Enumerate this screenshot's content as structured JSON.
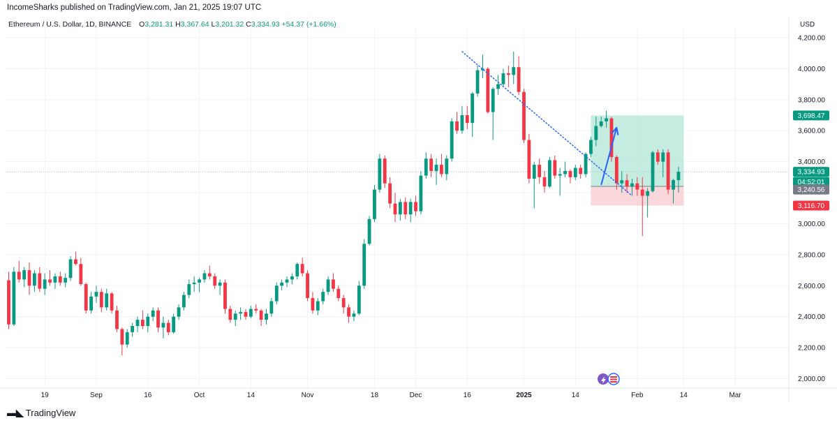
{
  "header": {
    "published": "IncomeSharks published on TradingView.com, Jan 21, 2025 19:07 UTC",
    "symbol": "Ethereum / U.S. Dollar, 1D, BINANCE",
    "ohlc": {
      "o_label": "O",
      "o": "3,281.31",
      "h_label": "H",
      "h": "3,367.64",
      "l_label": "L",
      "l": "3,201.32",
      "c_label": "C",
      "c": "3,334.93",
      "change": "+54.37 (+1.66%)"
    },
    "currency": "USD"
  },
  "footer": {
    "brand": "TradingView"
  },
  "colors": {
    "up": "#089981",
    "down": "#f23645",
    "trend": "#2962ff",
    "target_zone": "#b2e6d6",
    "stop_zone": "#f9d0d4"
  },
  "chart_data": {
    "type": "candlestick",
    "symbol": "ETHUSD",
    "timeframe": "1D",
    "ylim": [
      1950,
      4300
    ],
    "y_ticks": [
      2000,
      2200,
      2400,
      2600,
      2800,
      3000,
      3200,
      3400,
      3600,
      3800,
      4000,
      4200
    ],
    "y_tick_labels": [
      "2,000.00",
      "2,200.00",
      "2,400.00",
      "2,600.00",
      "2,800.00",
      "3,000.00",
      "",
      "3,400.00",
      "3,600.00",
      "3,800.00",
      "4,000.00",
      "4,200.00"
    ],
    "x_ticks": [
      {
        "label": "19",
        "index": 7,
        "bold": false
      },
      {
        "label": "Sep",
        "index": 17,
        "bold": false
      },
      {
        "label": "16",
        "index": 27,
        "bold": false
      },
      {
        "label": "Oct",
        "index": 37,
        "bold": false
      },
      {
        "label": "14",
        "index": 47,
        "bold": false
      },
      {
        "label": "Nov",
        "index": 58,
        "bold": false
      },
      {
        "label": "18",
        "index": 71,
        "bold": false
      },
      {
        "label": "Dec",
        "index": 79,
        "bold": false
      },
      {
        "label": "16",
        "index": 89,
        "bold": false
      },
      {
        "label": "2025",
        "index": 100,
        "bold": true
      },
      {
        "label": "14",
        "index": 110,
        "bold": false
      },
      {
        "label": "Feb",
        "index": 122,
        "bold": false
      },
      {
        "label": "14",
        "index": 131,
        "bold": false
      },
      {
        "label": "Mar",
        "index": 141,
        "bold": false
      }
    ],
    "candles": [
      [
        2635,
        2690,
        2320,
        2350
      ],
      [
        2350,
        2720,
        2340,
        2690
      ],
      [
        2690,
        2760,
        2620,
        2640
      ],
      [
        2640,
        2720,
        2590,
        2700
      ],
      [
        2700,
        2750,
        2540,
        2600
      ],
      [
        2600,
        2700,
        2560,
        2680
      ],
      [
        2680,
        2720,
        2560,
        2580
      ],
      [
        2580,
        2680,
        2540,
        2640
      ],
      [
        2640,
        2700,
        2600,
        2620
      ],
      [
        2620,
        2680,
        2580,
        2660
      ],
      [
        2660,
        2690,
        2600,
        2620
      ],
      [
        2620,
        2680,
        2590,
        2650
      ],
      [
        2650,
        2790,
        2630,
        2770
      ],
      [
        2770,
        2820,
        2730,
        2740
      ],
      [
        2740,
        2780,
        2600,
        2610
      ],
      [
        2610,
        2620,
        2420,
        2440
      ],
      [
        2440,
        2560,
        2420,
        2530
      ],
      [
        2530,
        2600,
        2490,
        2560
      ],
      [
        2560,
        2580,
        2430,
        2460
      ],
      [
        2460,
        2580,
        2440,
        2550
      ],
      [
        2550,
        2560,
        2420,
        2440
      ],
      [
        2440,
        2470,
        2300,
        2320
      ],
      [
        2320,
        2330,
        2150,
        2220
      ],
      [
        2220,
        2320,
        2200,
        2300
      ],
      [
        2300,
        2360,
        2270,
        2340
      ],
      [
        2340,
        2400,
        2300,
        2380
      ],
      [
        2380,
        2440,
        2320,
        2340
      ],
      [
        2340,
        2420,
        2300,
        2400
      ],
      [
        2400,
        2460,
        2370,
        2440
      ],
      [
        2440,
        2460,
        2300,
        2330
      ],
      [
        2330,
        2400,
        2260,
        2360
      ],
      [
        2360,
        2380,
        2280,
        2300
      ],
      [
        2300,
        2420,
        2290,
        2400
      ],
      [
        2400,
        2480,
        2380,
        2460
      ],
      [
        2460,
        2560,
        2440,
        2540
      ],
      [
        2540,
        2640,
        2520,
        2610
      ],
      [
        2610,
        2660,
        2560,
        2620
      ],
      [
        2620,
        2650,
        2560,
        2640
      ],
      [
        2640,
        2700,
        2620,
        2680
      ],
      [
        2680,
        2730,
        2640,
        2660
      ],
      [
        2660,
        2680,
        2580,
        2600
      ],
      [
        2600,
        2640,
        2540,
        2620
      ],
      [
        2620,
        2640,
        2420,
        2450
      ],
      [
        2450,
        2470,
        2360,
        2380
      ],
      [
        2380,
        2440,
        2340,
        2420
      ],
      [
        2420,
        2460,
        2380,
        2430
      ],
      [
        2430,
        2450,
        2380,
        2400
      ],
      [
        2400,
        2470,
        2390,
        2450
      ],
      [
        2450,
        2480,
        2420,
        2440
      ],
      [
        2440,
        2450,
        2340,
        2380
      ],
      [
        2380,
        2450,
        2350,
        2420
      ],
      [
        2420,
        2520,
        2400,
        2500
      ],
      [
        2500,
        2620,
        2480,
        2600
      ],
      [
        2600,
        2640,
        2570,
        2620
      ],
      [
        2620,
        2660,
        2590,
        2640
      ],
      [
        2640,
        2680,
        2610,
        2660
      ],
      [
        2660,
        2750,
        2640,
        2740
      ],
      [
        2740,
        2780,
        2660,
        2680
      ],
      [
        2680,
        2700,
        2500,
        2520
      ],
      [
        2520,
        2560,
        2420,
        2440
      ],
      [
        2440,
        2520,
        2410,
        2500
      ],
      [
        2500,
        2580,
        2480,
        2560
      ],
      [
        2560,
        2660,
        2540,
        2640
      ],
      [
        2640,
        2680,
        2560,
        2580
      ],
      [
        2580,
        2600,
        2500,
        2520
      ],
      [
        2520,
        2540,
        2420,
        2460
      ],
      [
        2460,
        2480,
        2360,
        2400
      ],
      [
        2400,
        2440,
        2370,
        2420
      ],
      [
        2420,
        2630,
        2410,
        2600
      ],
      [
        2600,
        2900,
        2580,
        2870
      ],
      [
        2870,
        3050,
        2860,
        3030
      ],
      [
        3030,
        3250,
        3010,
        3220
      ],
      [
        3220,
        3450,
        3200,
        3420
      ],
      [
        3420,
        3440,
        3230,
        3260
      ],
      [
        3260,
        3300,
        3100,
        3130
      ],
      [
        3130,
        3200,
        3010,
        3060
      ],
      [
        3060,
        3160,
        3020,
        3140
      ],
      [
        3140,
        3170,
        3030,
        3060
      ],
      [
        3060,
        3160,
        3010,
        3140
      ],
      [
        3140,
        3180,
        3050,
        3080
      ],
      [
        3080,
        3340,
        3060,
        3310
      ],
      [
        3310,
        3460,
        3290,
        3420
      ],
      [
        3420,
        3450,
        3300,
        3340
      ],
      [
        3340,
        3420,
        3250,
        3380
      ],
      [
        3380,
        3450,
        3300,
        3320
      ],
      [
        3320,
        3440,
        3280,
        3420
      ],
      [
        3420,
        3680,
        3400,
        3660
      ],
      [
        3660,
        3720,
        3580,
        3600
      ],
      [
        3600,
        3760,
        3580,
        3700
      ],
      [
        3700,
        3760,
        3610,
        3650
      ],
      [
        3650,
        3850,
        3560,
        3840
      ],
      [
        3840,
        4020,
        3820,
        3990
      ],
      [
        3990,
        4090,
        3940,
        4000
      ],
      [
        4000,
        4010,
        3710,
        3720
      ],
      [
        3720,
        3880,
        3540,
        3870
      ],
      [
        3870,
        3960,
        3830,
        3900
      ],
      [
        3900,
        4000,
        3880,
        3970
      ],
      [
        3970,
        4020,
        3880,
        3960
      ],
      [
        3960,
        4110,
        3900,
        4010
      ],
      [
        4010,
        4080,
        3830,
        3850
      ],
      [
        3850,
        3870,
        3520,
        3540
      ],
      [
        3540,
        3580,
        3260,
        3290
      ],
      [
        3290,
        3400,
        3100,
        3380
      ],
      [
        3380,
        3420,
        3260,
        3300
      ],
      [
        3300,
        3340,
        3200,
        3240
      ],
      [
        3240,
        3430,
        3230,
        3410
      ],
      [
        3410,
        3440,
        3290,
        3310
      ],
      [
        3310,
        3360,
        3180,
        3320
      ],
      [
        3320,
        3400,
        3300,
        3340
      ],
      [
        3340,
        3350,
        3260,
        3300
      ],
      [
        3300,
        3380,
        3280,
        3360
      ],
      [
        3360,
        3380,
        3290,
        3320
      ],
      [
        3320,
        3460,
        3300,
        3450
      ],
      [
        3450,
        3560,
        3430,
        3540
      ],
      [
        3540,
        3690,
        3500,
        3630
      ],
      [
        3630,
        3690,
        3620,
        3660
      ],
      [
        3660,
        3730,
        3620,
        3680
      ],
      [
        3680,
        3690,
        3400,
        3430
      ],
      [
        3430,
        3440,
        3220,
        3260
      ],
      [
        3260,
        3340,
        3200,
        3280
      ],
      [
        3280,
        3320,
        3200,
        3240
      ],
      [
        3240,
        3290,
        3180,
        3260
      ],
      [
        3260,
        3300,
        3180,
        3220
      ],
      [
        3220,
        3300,
        2920,
        3180
      ],
      [
        3180,
        3230,
        3040,
        3210
      ],
      [
        3210,
        3470,
        3200,
        3460
      ],
      [
        3460,
        3480,
        3380,
        3400
      ],
      [
        3400,
        3480,
        3300,
        3460
      ],
      [
        3460,
        3480,
        3190,
        3220
      ],
      [
        3220,
        3290,
        3130,
        3281.31
      ],
      [
        3281.31,
        3367.64,
        3201.32,
        3334.93
      ]
    ],
    "price_line": 3334.93,
    "trendline": {
      "from": {
        "index": 88,
        "price": 4110
      },
      "to": {
        "index": 121,
        "price": 3180
      },
      "style": "dotted"
    },
    "position": {
      "x_start_index": 113,
      "x_end_index": 131,
      "target": 3698.47,
      "entry": 3240.56,
      "stop": 3116.7
    },
    "arrow": {
      "from": {
        "index": 115,
        "price": 3250
      },
      "to": {
        "index": 118,
        "price": 3620
      }
    },
    "price_badges": [
      {
        "label": "3,698.47",
        "price": 3698.47,
        "color": "#089981"
      },
      {
        "label": "3,334.93",
        "price": 3334.93,
        "color": "#089981"
      },
      {
        "label": "04:52:01",
        "price": 3270,
        "color": "#089981"
      },
      {
        "label": "3,240.56",
        "price": 3220,
        "color": "#787b86"
      },
      {
        "label": "3,116.70",
        "price": 3116.7,
        "color": "#f23645"
      }
    ]
  }
}
